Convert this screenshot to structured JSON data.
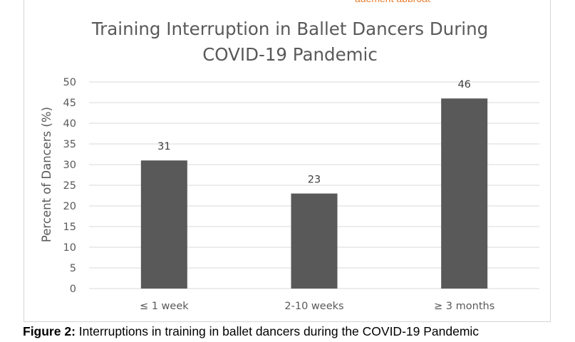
{
  "chart_data": {
    "type": "bar",
    "title_lines": [
      "Training Interruption in Ballet Dancers During",
      "COVID-19 Pandemic"
    ],
    "xlabel": "",
    "ylabel": "Percent of Dancers (%)",
    "categories": [
      "≤ 1 week",
      "2-10 weeks",
      "≥ 3 months"
    ],
    "values": [
      31,
      23,
      46
    ],
    "data_labels": [
      "31",
      "23",
      "46"
    ],
    "ylim": [
      0,
      50
    ],
    "yticks": [
      "0",
      "5",
      "10",
      "15",
      "20",
      "25",
      "30",
      "35",
      "40",
      "45",
      "50"
    ],
    "grid": true,
    "bar_color": "#595959",
    "grid_color": "#d9d9d9",
    "title_color": "#595959",
    "text_color": "#404040"
  },
  "caption": {
    "label": "Figure 2:",
    "text": " Interruptions in training in ballet dancers during the COVID-19 Pandemic"
  }
}
